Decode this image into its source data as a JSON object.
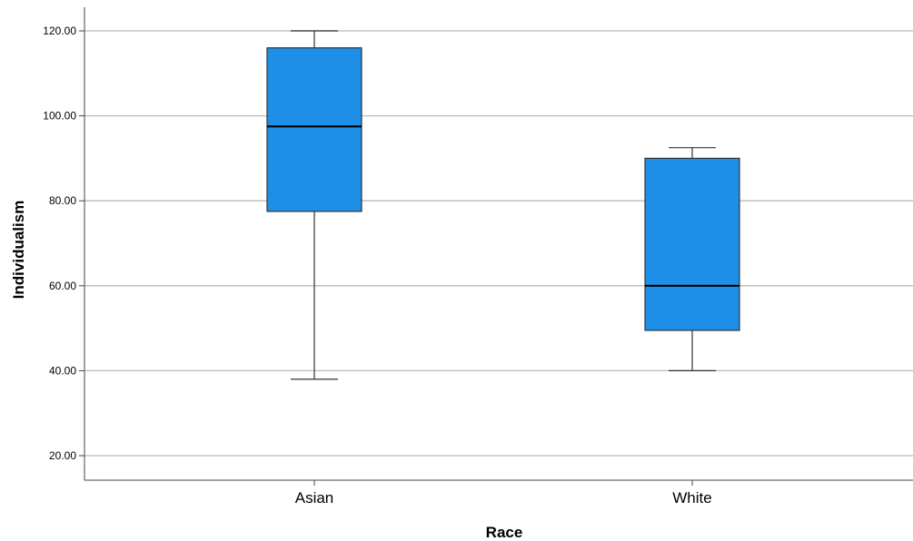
{
  "chart_data": {
    "type": "box",
    "xlabel": "Race",
    "ylabel": "Individualism",
    "ylim": [
      15,
      122
    ],
    "yticks": [
      "20.00",
      "40.00",
      "60.00",
      "80.00",
      "100.00",
      "120.00"
    ],
    "grid": true,
    "categories": [
      "Asian",
      "White"
    ],
    "boxes": [
      {
        "category": "Asian",
        "whisker_low": 38,
        "q1": 77.5,
        "median": 97.5,
        "q3": 116,
        "whisker_high": 120
      },
      {
        "category": "White",
        "whisker_low": 40,
        "q1": 49.5,
        "median": 60,
        "q3": 90,
        "whisker_high": 92.5
      }
    ],
    "colors": {
      "box_fill": "#1e8fe6",
      "grid": "#b9b9b9",
      "axis": "#444444"
    }
  }
}
